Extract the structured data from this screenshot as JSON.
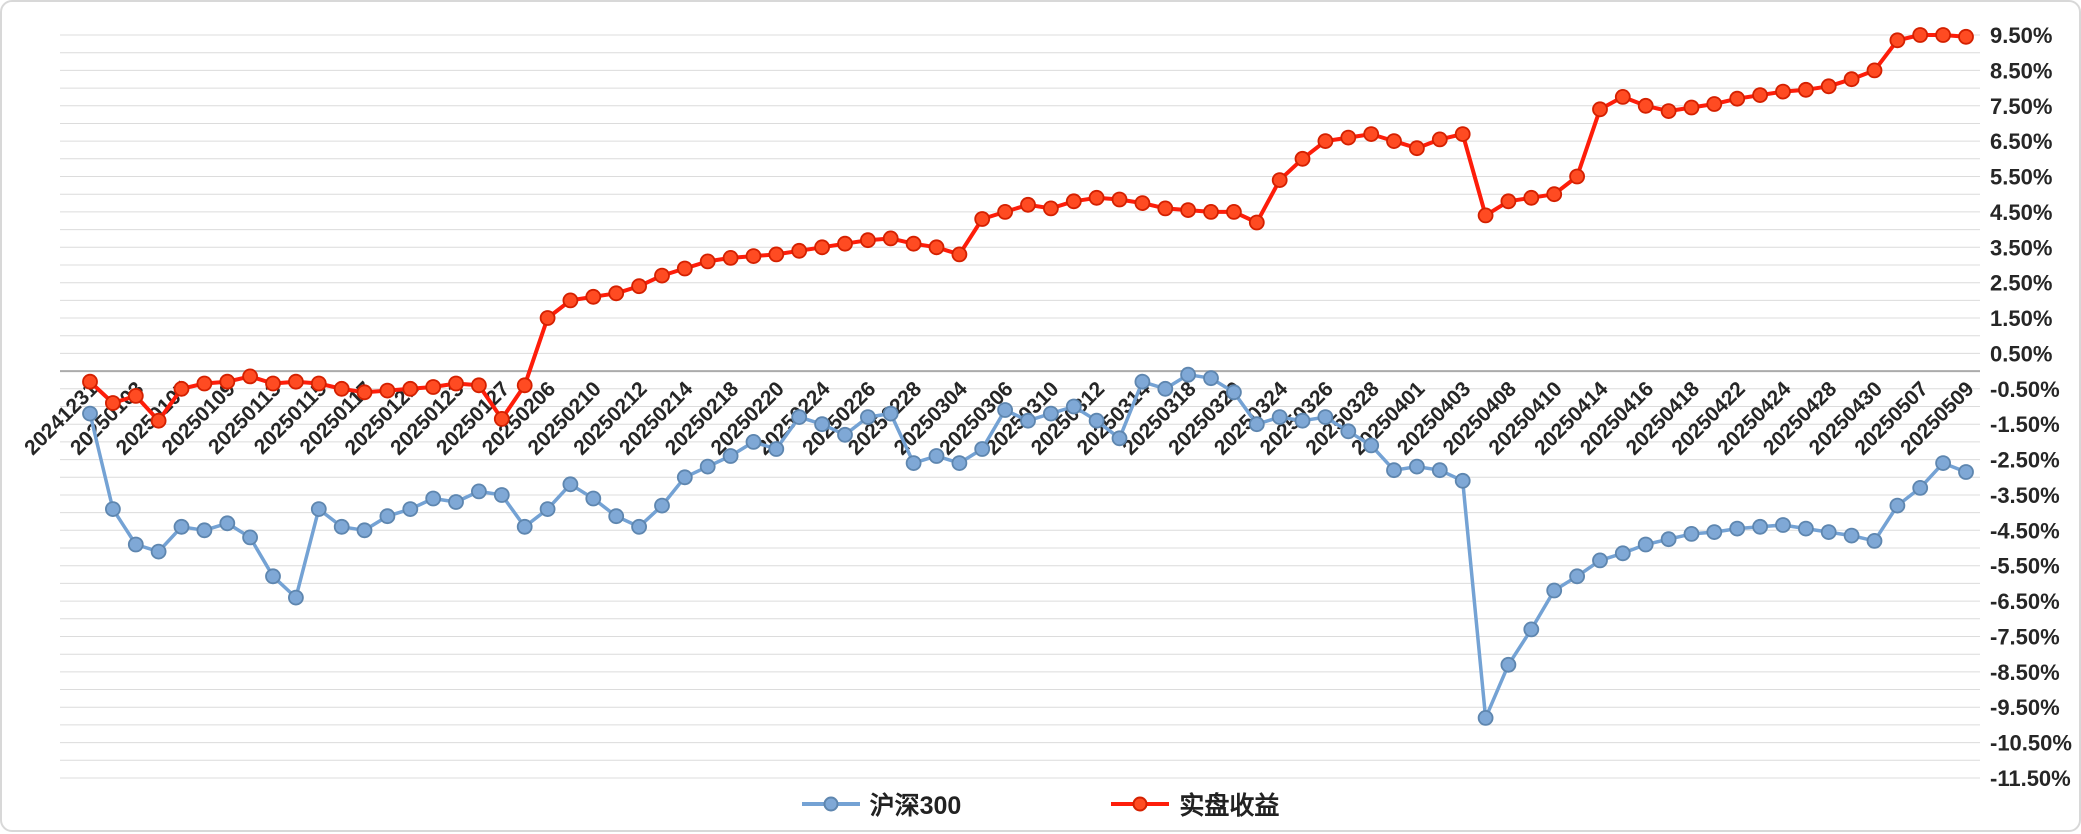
{
  "chart_data": {
    "type": "line",
    "title": "",
    "legend_position": "bottom",
    "grid": true,
    "y_axis": {
      "min": -11.5,
      "max": 9.5,
      "grid_step": 0.5,
      "labels_side": "right",
      "format": "percent"
    },
    "y_tick_labels": [
      "9.50%",
      "8.50%",
      "7.50%",
      "6.50%",
      "5.50%",
      "4.50%",
      "3.50%",
      "2.50%",
      "1.50%",
      "0.50%",
      "-0.50%",
      "-1.50%",
      "-2.50%",
      "-3.50%",
      "-4.50%",
      "-5.50%",
      "-6.50%",
      "-7.50%",
      "-8.50%",
      "-9.50%",
      "-10.50%",
      "-11.50%"
    ],
    "y_tick_values": [
      9.5,
      8.5,
      7.5,
      6.5,
      5.5,
      4.5,
      3.5,
      2.5,
      1.5,
      0.5,
      -0.5,
      -1.5,
      -2.5,
      -3.5,
      -4.5,
      -5.5,
      -6.5,
      -7.5,
      -8.5,
      -9.5,
      -10.5,
      -11.5
    ],
    "x_tick_labels": [
      "20241231",
      "20250103",
      "20250107",
      "20250109",
      "20250113",
      "20250115",
      "20250117",
      "20250121",
      "20250123",
      "20250127",
      "20250206",
      "20250210",
      "20250212",
      "20250214",
      "20250218",
      "20250220",
      "20250224",
      "20250226",
      "20250228",
      "20250304",
      "20250306",
      "20250310",
      "20250312",
      "20250314",
      "20250318",
      "20250320",
      "20250324",
      "20250326",
      "20250328",
      "20250401",
      "20250403",
      "20250408",
      "20250410",
      "20250414",
      "20250416",
      "20250418",
      "20250422",
      "20250424",
      "20250428",
      "20250430",
      "20250507",
      "20250509"
    ],
    "points_between_labels": 2,
    "colors": {
      "grid": "#dcdcdc",
      "zero_axis": "#ababab",
      "tick_text": "#262626"
    },
    "series": [
      {
        "name": "沪深300",
        "key": "csi300",
        "color": "#74a2d4",
        "marker_fill": "#7fa8d6",
        "marker_stroke": "#5e86af",
        "values": [
          -1.2,
          -3.9,
          -4.9,
          -5.1,
          -4.4,
          -4.5,
          -4.3,
          -4.7,
          -5.8,
          -6.4,
          -3.9,
          -4.4,
          -4.5,
          -4.1,
          -3.9,
          -3.6,
          -3.7,
          -3.4,
          -3.5,
          -4.4,
          -3.9,
          -3.2,
          -3.6,
          -4.1,
          -4.4,
          -3.8,
          -3.0,
          -2.7,
          -2.4,
          -2.0,
          -2.2,
          -1.3,
          -1.5,
          -1.8,
          -1.3,
          -1.2,
          -2.6,
          -2.4,
          -2.6,
          -2.2,
          -1.1,
          -1.4,
          -1.2,
          -1.0,
          -1.4,
          -1.9,
          -0.3,
          -0.5,
          -0.1,
          -0.2,
          -0.6,
          -1.5,
          -1.3,
          -1.4,
          -1.3,
          -1.7,
          -2.1,
          -2.8,
          -2.7,
          -2.8,
          -3.1,
          -9.8,
          -8.3,
          -7.3,
          -6.2,
          -5.8,
          -5.35,
          -5.15,
          -4.9,
          -4.75,
          -4.6,
          -4.55,
          -4.45,
          -4.4,
          -4.35,
          -4.45,
          -4.55,
          -4.65,
          -4.8,
          -3.8,
          -3.3,
          -2.6,
          -2.85
        ]
      },
      {
        "name": "实盘收益",
        "key": "real-returns",
        "color": "#fe1d0a",
        "marker_fill": "#ff4b22",
        "marker_stroke": "#d42000",
        "values": [
          -0.3,
          -0.9,
          -0.7,
          -1.4,
          -0.5,
          -0.35,
          -0.3,
          -0.15,
          -0.35,
          -0.3,
          -0.35,
          -0.5,
          -0.6,
          -0.55,
          -0.5,
          -0.45,
          -0.35,
          -0.4,
          -1.35,
          -0.4,
          1.5,
          2.0,
          2.1,
          2.2,
          2.4,
          2.7,
          2.9,
          3.1,
          3.2,
          3.25,
          3.3,
          3.4,
          3.5,
          3.6,
          3.7,
          3.75,
          3.6,
          3.5,
          3.3,
          4.3,
          4.5,
          4.7,
          4.6,
          4.8,
          4.9,
          4.85,
          4.75,
          4.6,
          4.55,
          4.5,
          4.5,
          4.2,
          5.4,
          6.0,
          6.5,
          6.6,
          6.7,
          6.5,
          6.3,
          6.55,
          6.7,
          4.4,
          4.8,
          4.9,
          5.0,
          5.5,
          7.4,
          7.75,
          7.5,
          7.35,
          7.45,
          7.55,
          7.7,
          7.8,
          7.9,
          7.95,
          8.05,
          8.25,
          8.5,
          9.35,
          9.5,
          9.5,
          9.45
        ]
      }
    ]
  }
}
